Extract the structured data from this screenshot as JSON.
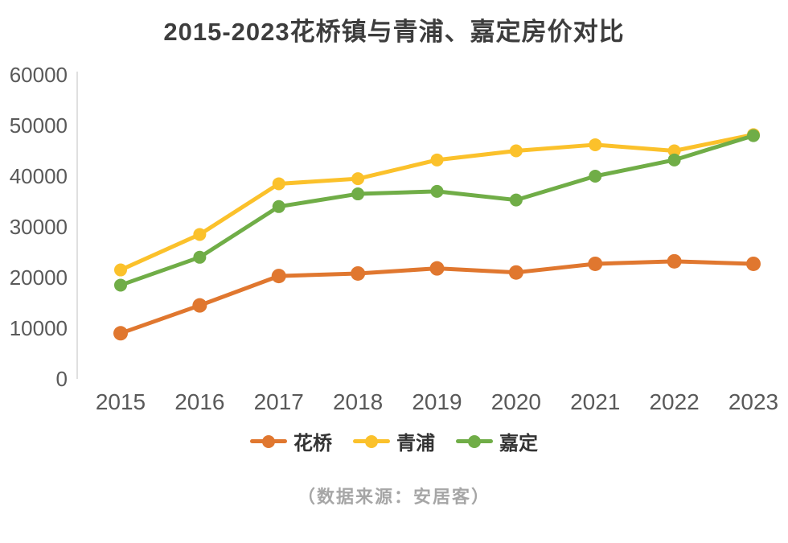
{
  "title": "2015-2023花桥镇与青浦、嘉定房价对比",
  "footer": "（数据来源：安居客）",
  "axis_color": "#d6d6d6",
  "tick_label_color": "#595959",
  "chart_data": {
    "type": "line",
    "title": "2015-2023花桥镇与青浦、嘉定房价对比",
    "x": [
      2015,
      2016,
      2017,
      2018,
      2019,
      2020,
      2021,
      2022,
      2023
    ],
    "series": [
      {
        "name": "花桥",
        "color": "#e0772f",
        "marker_radius": 9,
        "values": [
          9000,
          14500,
          20300,
          20800,
          21800,
          21000,
          22700,
          23200,
          22700
        ]
      },
      {
        "name": "青浦",
        "color": "#fbc12b",
        "marker_radius": 8,
        "values": [
          21500,
          28500,
          38500,
          39500,
          43200,
          45000,
          46200,
          45000,
          48200
        ]
      },
      {
        "name": "嘉定",
        "color": "#70ad47",
        "marker_radius": 8,
        "values": [
          18500,
          24000,
          34000,
          36500,
          37000,
          35300,
          40000,
          43200,
          48000
        ]
      }
    ],
    "ylim": [
      0,
      60000
    ],
    "yticks": [
      0,
      10000,
      20000,
      30000,
      40000,
      50000,
      60000
    ],
    "grid": false,
    "legend_position": "bottom",
    "source_note": "（数据来源：安居客）"
  }
}
